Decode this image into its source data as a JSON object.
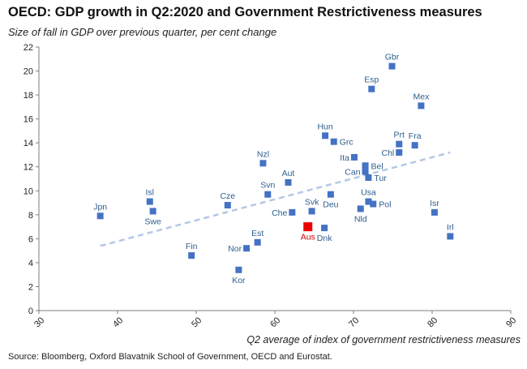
{
  "header": {
    "title": "OECD: GDP growth in Q2:2020 and Government Restrictiveness measures",
    "subtitle": "Size of fall in GDP over previous quarter, per cent change"
  },
  "footer": {
    "source": "Source: Bloomberg, Oxford Blavatnik School of Government, OECD and Eurostat."
  },
  "colors": {
    "marker": "#4472c4",
    "highlight": "#ee0000",
    "label": "#2e5e8e",
    "trend": "#b4c7e7",
    "axis": "#7f7f7f"
  },
  "chart_data": {
    "type": "scatter",
    "title": "OECD: GDP growth in Q2:2020 and Government Restrictiveness measures",
    "ylabel": "Size of fall in GDP over previous quarter, per cent change",
    "xlabel": "Q2 average of index of government restrictiveness measures",
    "xlim": [
      30,
      90
    ],
    "ylim": [
      0,
      22
    ],
    "xticks": [
      30,
      40,
      50,
      60,
      70,
      80,
      90
    ],
    "yticks": [
      0,
      2,
      4,
      6,
      8,
      10,
      12,
      14,
      16,
      18,
      20,
      22
    ],
    "grid": false,
    "trendline": {
      "style": "dashed",
      "x": [
        37.8,
        82.3
      ],
      "y": [
        5.4,
        13.2
      ]
    },
    "points": [
      {
        "label": "Jpn",
        "x": 37.8,
        "y": 7.9,
        "pos": "above"
      },
      {
        "label": "Isl",
        "x": 44.1,
        "y": 9.1,
        "pos": "above"
      },
      {
        "label": "Swe",
        "x": 44.5,
        "y": 8.3,
        "pos": "below"
      },
      {
        "label": "Fin",
        "x": 49.4,
        "y": 4.6,
        "pos": "above"
      },
      {
        "label": "Cze",
        "x": 54.0,
        "y": 8.8,
        "pos": "above"
      },
      {
        "label": "Kor",
        "x": 55.4,
        "y": 3.4,
        "pos": "below"
      },
      {
        "label": "Nor",
        "x": 56.4,
        "y": 5.2,
        "pos": "left"
      },
      {
        "label": "Est",
        "x": 57.8,
        "y": 5.7,
        "pos": "above"
      },
      {
        "label": "Nzl",
        "x": 58.5,
        "y": 12.3,
        "pos": "above"
      },
      {
        "label": "Svn",
        "x": 59.1,
        "y": 9.7,
        "pos": "above"
      },
      {
        "label": "Aut",
        "x": 61.7,
        "y": 10.7,
        "pos": "above"
      },
      {
        "label": "Che",
        "x": 62.2,
        "y": 8.2,
        "pos": "left"
      },
      {
        "label": "Aus",
        "x": 64.2,
        "y": 7.0,
        "pos": "below",
        "highlight": true
      },
      {
        "label": "Svk",
        "x": 64.7,
        "y": 8.3,
        "pos": "above"
      },
      {
        "label": "Hun",
        "x": 66.4,
        "y": 14.6,
        "pos": "above"
      },
      {
        "label": "Dnk",
        "x": 66.3,
        "y": 6.9,
        "pos": "below"
      },
      {
        "label": "Deu",
        "x": 67.1,
        "y": 9.7,
        "pos": "below"
      },
      {
        "label": "Grc",
        "x": 67.5,
        "y": 14.1,
        "pos": "right"
      },
      {
        "label": "Ita",
        "x": 70.1,
        "y": 12.8,
        "pos": "left"
      },
      {
        "label": "Nld",
        "x": 70.9,
        "y": 8.5,
        "pos": "below"
      },
      {
        "label": "Bel",
        "x": 71.5,
        "y": 12.1,
        "pos": "right"
      },
      {
        "label": "Can",
        "x": 71.5,
        "y": 11.6,
        "pos": "left"
      },
      {
        "label": "Tur",
        "x": 71.9,
        "y": 11.1,
        "pos": "right"
      },
      {
        "label": "Usa",
        "x": 71.9,
        "y": 9.1,
        "pos": "above"
      },
      {
        "label": "Pol",
        "x": 72.5,
        "y": 8.9,
        "pos": "right"
      },
      {
        "label": "Esp",
        "x": 72.3,
        "y": 18.5,
        "pos": "above"
      },
      {
        "label": "Gbr",
        "x": 74.9,
        "y": 20.4,
        "pos": "above"
      },
      {
        "label": "Prt",
        "x": 75.8,
        "y": 13.9,
        "pos": "above"
      },
      {
        "label": "Chl",
        "x": 75.8,
        "y": 13.2,
        "pos": "left"
      },
      {
        "label": "Fra",
        "x": 77.8,
        "y": 13.8,
        "pos": "above"
      },
      {
        "label": "Mex",
        "x": 78.6,
        "y": 17.1,
        "pos": "above"
      },
      {
        "label": "Isr",
        "x": 80.3,
        "y": 8.2,
        "pos": "above"
      },
      {
        "label": "Irl",
        "x": 82.3,
        "y": 6.2,
        "pos": "above"
      }
    ]
  }
}
